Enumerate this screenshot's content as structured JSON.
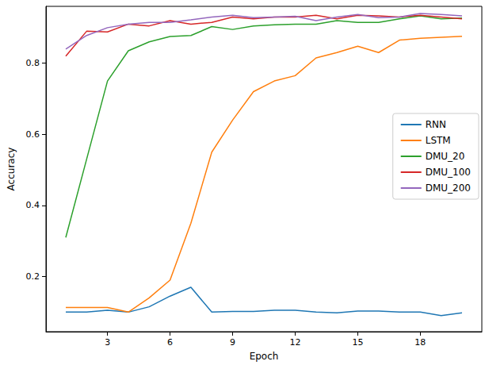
{
  "chart_data": {
    "type": "line",
    "x_label": "Epoch",
    "y_label": "Accuracy",
    "x": [
      1,
      2,
      3,
      4,
      5,
      6,
      7,
      8,
      9,
      10,
      11,
      12,
      13,
      14,
      15,
      16,
      17,
      18,
      19,
      20
    ],
    "series": [
      {
        "name": "RNN",
        "color": "#1f77b4",
        "values": [
          0.1,
          0.1,
          0.105,
          0.1,
          0.115,
          0.145,
          0.17,
          0.1,
          0.102,
          0.102,
          0.105,
          0.105,
          0.1,
          0.098,
          0.103,
          0.103,
          0.1,
          0.1,
          0.09,
          0.098
        ]
      },
      {
        "name": "LSTM",
        "color": "#ff7f0e",
        "values": [
          0.113,
          0.113,
          0.113,
          0.1,
          0.14,
          0.19,
          0.35,
          0.55,
          0.64,
          0.72,
          0.75,
          0.765,
          0.815,
          0.83,
          0.848,
          0.83,
          0.865,
          0.87,
          0.873,
          0.876
        ]
      },
      {
        "name": "DMU_20",
        "color": "#2ca02c",
        "values": [
          0.31,
          0.53,
          0.75,
          0.835,
          0.86,
          0.875,
          0.878,
          0.903,
          0.895,
          0.905,
          0.908,
          0.91,
          0.91,
          0.92,
          0.915,
          0.915,
          0.925,
          0.933,
          0.925,
          0.927
        ]
      },
      {
        "name": "DMU_100",
        "color": "#d62728",
        "values": [
          0.82,
          0.89,
          0.888,
          0.91,
          0.905,
          0.92,
          0.91,
          0.915,
          0.93,
          0.925,
          0.93,
          0.93,
          0.935,
          0.925,
          0.935,
          0.933,
          0.93,
          0.935,
          0.93,
          0.925
        ]
      },
      {
        "name": "DMU_200",
        "color": "#9467bd",
        "values": [
          0.84,
          0.878,
          0.9,
          0.91,
          0.915,
          0.915,
          0.922,
          0.93,
          0.935,
          0.928,
          0.93,
          0.932,
          0.92,
          0.93,
          0.937,
          0.928,
          0.93,
          0.94,
          0.937,
          0.933
        ]
      }
    ],
    "xlim": [
      0.05,
      20.95
    ],
    "xticks": [
      3,
      6,
      9,
      12,
      15,
      18
    ],
    "ylim": [
      0.045,
      0.96
    ],
    "yticks": [
      0.2,
      0.4,
      0.6,
      0.8
    ],
    "grid": false,
    "legend": "right"
  }
}
